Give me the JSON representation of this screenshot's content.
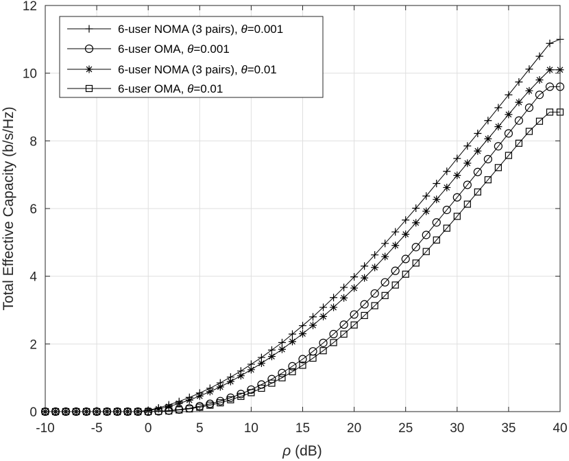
{
  "chart_data": {
    "type": "line",
    "title": "",
    "xlabel_symbol": "ρ",
    "xlabel_unit": " (dB)",
    "ylabel": "Total Effective Capacity (b/s/Hz)",
    "xlim": [
      -10,
      40
    ],
    "ylim": [
      0,
      12
    ],
    "xticks": [
      -10,
      -5,
      0,
      5,
      10,
      15,
      20,
      25,
      30,
      35,
      40
    ],
    "yticks": [
      0,
      2,
      4,
      6,
      8,
      10,
      12
    ],
    "grid": true,
    "legend_position": "top-left",
    "x": [
      -10,
      -9,
      -8,
      -7,
      -6,
      -5,
      -4,
      -3,
      -2,
      -1,
      0,
      1,
      2,
      3,
      4,
      5,
      6,
      7,
      8,
      9,
      10,
      11,
      12,
      13,
      14,
      15,
      16,
      17,
      18,
      19,
      20,
      21,
      22,
      23,
      24,
      25,
      26,
      27,
      28,
      29,
      30,
      31,
      32,
      33,
      34,
      35,
      36,
      37,
      38,
      39,
      40
    ],
    "series": [
      {
        "name": "6-user NOMA (3 pairs), θ=0.001",
        "legend_prefix": "6-user NOMA (3 pairs), ",
        "theta_value": "=0.001",
        "marker": "plus",
        "values": [
          0,
          0,
          0,
          0,
          0,
          0,
          0,
          0,
          0,
          0,
          0.04,
          0.11,
          0.2,
          0.3,
          0.42,
          0.55,
          0.69,
          0.85,
          1.02,
          1.2,
          1.4,
          1.6,
          1.82,
          2.04,
          2.29,
          2.54,
          2.8,
          3.08,
          3.37,
          3.67,
          3.98,
          4.3,
          4.63,
          4.97,
          5.31,
          5.66,
          6.01,
          6.37,
          6.74,
          7.1,
          7.48,
          7.85,
          8.22,
          8.6,
          8.98,
          9.36,
          9.74,
          10.12,
          10.5,
          10.88,
          11.0
        ]
      },
      {
        "name": "6-user OMA, θ=0.001",
        "legend_prefix": "6-user OMA, ",
        "theta_value": "=0.001",
        "marker": "circle",
        "values": [
          0,
          0,
          0,
          0,
          0,
          0,
          0,
          0,
          0,
          0,
          0,
          0.01,
          0.03,
          0.06,
          0.1,
          0.16,
          0.23,
          0.31,
          0.41,
          0.52,
          0.65,
          0.8,
          0.96,
          1.14,
          1.34,
          1.55,
          1.78,
          2.03,
          2.29,
          2.57,
          2.87,
          3.17,
          3.49,
          3.82,
          4.16,
          4.51,
          4.86,
          5.22,
          5.59,
          5.96,
          6.33,
          6.7,
          7.08,
          7.46,
          7.84,
          8.22,
          8.6,
          8.98,
          9.36,
          9.6,
          9.6
        ]
      },
      {
        "name": "6-user NOMA (3 pairs), θ=0.01",
        "legend_prefix": "6-user NOMA (3 pairs), ",
        "theta_value": "=0.01",
        "marker": "asterisk",
        "values": [
          0,
          0,
          0,
          0,
          0,
          0,
          0,
          0,
          0,
          0,
          0.03,
          0.08,
          0.15,
          0.24,
          0.34,
          0.46,
          0.59,
          0.73,
          0.89,
          1.06,
          1.24,
          1.43,
          1.63,
          1.84,
          2.07,
          2.3,
          2.55,
          2.81,
          3.08,
          3.36,
          3.65,
          3.95,
          4.26,
          4.58,
          4.91,
          5.24,
          5.58,
          5.92,
          6.27,
          6.62,
          6.98,
          7.34,
          7.7,
          8.06,
          8.42,
          8.78,
          9.14,
          9.48,
          9.8,
          10.1,
          10.1
        ]
      },
      {
        "name": "6-user OMA, θ=0.01",
        "legend_prefix": "6-user OMA, ",
        "theta_value": "=0.01",
        "marker": "square",
        "values": [
          0,
          0,
          0,
          0,
          0,
          0,
          0,
          0,
          0,
          0,
          0,
          0.01,
          0.02,
          0.05,
          0.08,
          0.13,
          0.19,
          0.26,
          0.35,
          0.45,
          0.56,
          0.69,
          0.84,
          1.0,
          1.18,
          1.37,
          1.58,
          1.8,
          2.04,
          2.29,
          2.56,
          2.84,
          3.13,
          3.43,
          3.74,
          4.06,
          4.39,
          4.73,
          5.07,
          5.42,
          5.77,
          6.13,
          6.49,
          6.85,
          7.21,
          7.57,
          7.93,
          8.28,
          8.58,
          8.85,
          8.85
        ]
      }
    ]
  }
}
